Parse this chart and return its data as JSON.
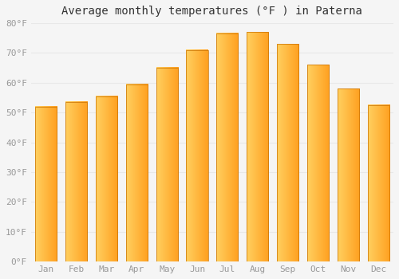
{
  "title": "Average monthly temperatures (°F ) in Paterna",
  "months": [
    "Jan",
    "Feb",
    "Mar",
    "Apr",
    "May",
    "Jun",
    "Jul",
    "Aug",
    "Sep",
    "Oct",
    "Nov",
    "Dec"
  ],
  "values": [
    52,
    53.5,
    55.5,
    59.5,
    65,
    71,
    76.5,
    77,
    73,
    66,
    58,
    52.5
  ],
  "bar_color_left": "#FFD060",
  "bar_color_right": "#FFA020",
  "bar_edge_color": "#C87000",
  "ylim": [
    0,
    80
  ],
  "yticks": [
    0,
    10,
    20,
    30,
    40,
    50,
    60,
    70,
    80
  ],
  "ylabel_suffix": "°F",
  "background_color": "#f5f5f5",
  "plot_bg_color": "#f5f5f5",
  "grid_color": "#e8e8e8",
  "title_fontsize": 10,
  "tick_color": "#999999",
  "tick_fontsize": 8
}
